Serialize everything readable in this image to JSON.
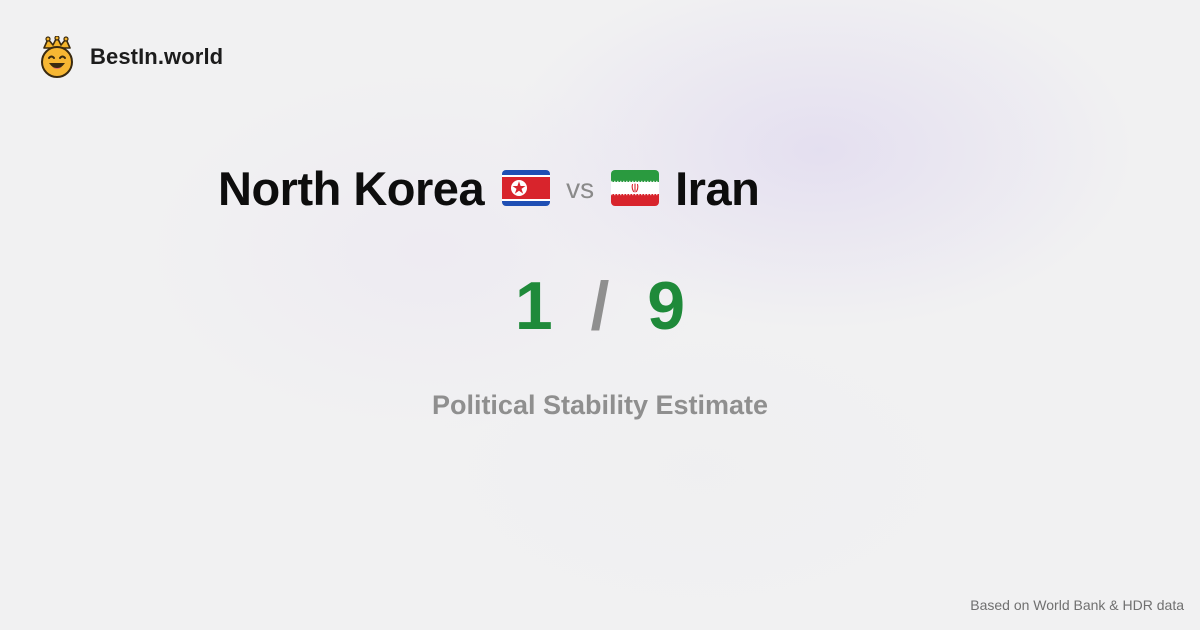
{
  "brand": {
    "name": "BestIn.world",
    "logo_icon": "crown-smiley-icon"
  },
  "comparison": {
    "country_a": {
      "name": "North Korea",
      "flag_icon": "north-korea-flag-icon"
    },
    "vs_label": "vs",
    "country_b": {
      "name": "Iran",
      "flag_icon": "iran-flag-icon"
    },
    "score_a": "1",
    "score_separator": "/",
    "score_b": "9",
    "metric": "Political Stability Estimate"
  },
  "footer": {
    "source": "Based on World Bank & HDR data"
  },
  "colors": {
    "score": "#1f8a3a",
    "separator": "#8f8f8f",
    "metric": "#8f8f8f",
    "background": "#f1f1f2"
  }
}
